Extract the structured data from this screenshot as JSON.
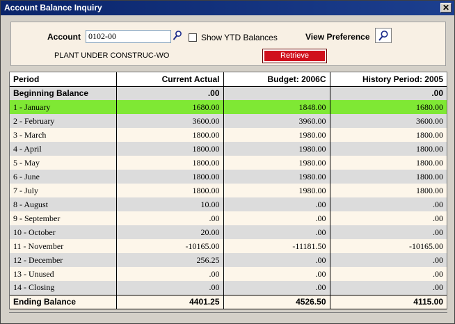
{
  "window": {
    "title": "Account Balance Inquiry",
    "close_glyph": "✕"
  },
  "header": {
    "account_label": "Account",
    "account_value": "0102-00",
    "show_ytd_label": "Show YTD Balances",
    "show_ytd_checked": false,
    "view_preference_label": "View Preference",
    "account_description": "PLANT UNDER CONSTRUC-WO",
    "retrieve_label": "Retrieve"
  },
  "table": {
    "columns": [
      "Period",
      "Current Actual",
      "Budget: 2006C",
      "History Period: 2005"
    ],
    "beginning": {
      "label": "Beginning Balance",
      "current": ".00",
      "budget": "",
      "history": ".00"
    },
    "rows": [
      {
        "period": "1  - January",
        "current": "1680.00",
        "budget": "1848.00",
        "history": "1680.00"
      },
      {
        "period": "2  - February",
        "current": "3600.00",
        "budget": "3960.00",
        "history": "3600.00"
      },
      {
        "period": "3  - March",
        "current": "1800.00",
        "budget": "1980.00",
        "history": "1800.00"
      },
      {
        "period": "4  - April",
        "current": "1800.00",
        "budget": "1980.00",
        "history": "1800.00"
      },
      {
        "period": "5  - May",
        "current": "1800.00",
        "budget": "1980.00",
        "history": "1800.00"
      },
      {
        "period": "6  - June",
        "current": "1800.00",
        "budget": "1980.00",
        "history": "1800.00"
      },
      {
        "period": "7  - July",
        "current": "1800.00",
        "budget": "1980.00",
        "history": "1800.00"
      },
      {
        "period": "8  - August",
        "current": "10.00",
        "budget": ".00",
        "history": ".00"
      },
      {
        "period": "9  - September",
        "current": ".00",
        "budget": ".00",
        "history": ".00"
      },
      {
        "period": "10 - October",
        "current": "20.00",
        "budget": ".00",
        "history": ".00"
      },
      {
        "period": "11 - November",
        "current": "-10165.00",
        "budget": "-11181.50",
        "history": "-10165.00"
      },
      {
        "period": "12 - December",
        "current": "256.25",
        "budget": ".00",
        "history": ".00"
      },
      {
        "period": "13 - Unused",
        "current": ".00",
        "budget": ".00",
        "history": ".00"
      },
      {
        "period": "14 - Closing",
        "current": ".00",
        "budget": ".00",
        "history": ".00"
      }
    ],
    "selected_index": 0,
    "ending": {
      "label": "Ending Balance",
      "current": "4401.25",
      "budget": "4526.50",
      "history": "4115.00"
    }
  },
  "colors": {
    "selected_row": "#7fe834",
    "retrieve_button": "#d0101c",
    "titlebar": "#0a246a"
  },
  "icons": {
    "account_lookup": "magnifier-icon",
    "view_preference": "magnifier-icon"
  }
}
